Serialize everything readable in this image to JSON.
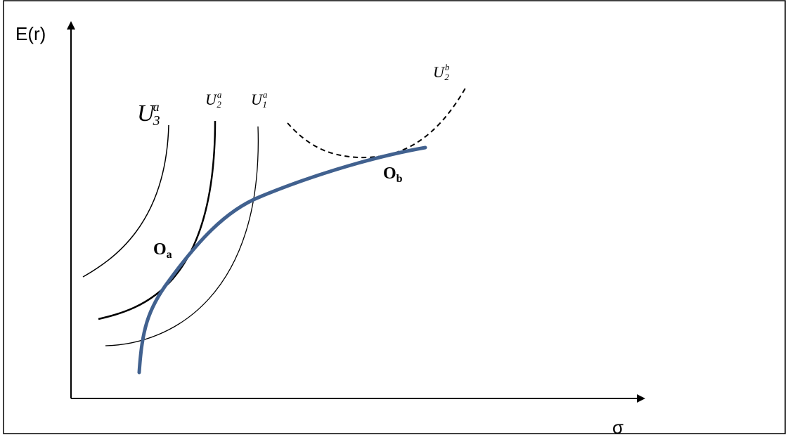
{
  "axes": {
    "y_label": "E(r)",
    "x_label": "σ"
  },
  "indifference_curves": [
    {
      "base": "U",
      "sub": "3",
      "sup": "a"
    },
    {
      "base": "U",
      "sub": "2",
      "sup": "a"
    },
    {
      "base": "U",
      "sub": "1",
      "sup": "a"
    },
    {
      "base": "U",
      "sub": "2",
      "sup": "b"
    }
  ],
  "points": [
    {
      "base": "O",
      "sub": "a"
    },
    {
      "base": "O",
      "sub": "b"
    }
  ],
  "colors": {
    "frontier": "#41618f",
    "curves": "#000000",
    "border": "#000000"
  }
}
